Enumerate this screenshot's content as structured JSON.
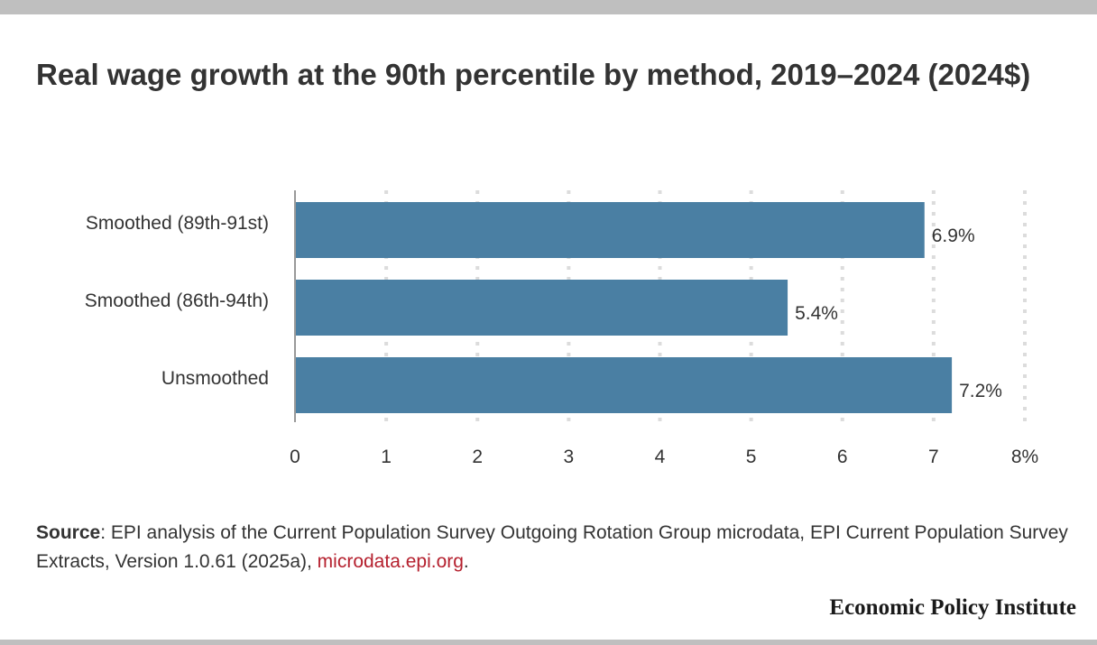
{
  "title": "Real wage growth at the 90th percentile by method, 2019–2024 (2024$)",
  "chart_data": {
    "type": "bar",
    "orientation": "horizontal",
    "categories": [
      "Smoothed (89th-91st)",
      "Smoothed (86th-94th)",
      "Unsmoothed"
    ],
    "values": [
      6.9,
      5.4,
      7.2
    ],
    "value_labels": [
      "6.9%",
      "5.4%",
      "7.2%"
    ],
    "xlim": [
      0,
      8
    ],
    "x_ticks": [
      0,
      1,
      2,
      3,
      4,
      5,
      6,
      7,
      8
    ],
    "x_tick_labels": [
      "0",
      "1",
      "2",
      "3",
      "4",
      "5",
      "6",
      "7",
      "8%"
    ],
    "grid": "vertical dotted",
    "bar_color": "#4a7fa3"
  },
  "source": {
    "label": "Source",
    "text": ": EPI analysis of the Current Population Survey Outgoing Rotation Group microdata, EPI Current Population Survey Extracts, Version 1.0.61 (2025a), ",
    "link_text": "microdata.epi.org",
    "end": "."
  },
  "brand": "Economic Policy Institute"
}
